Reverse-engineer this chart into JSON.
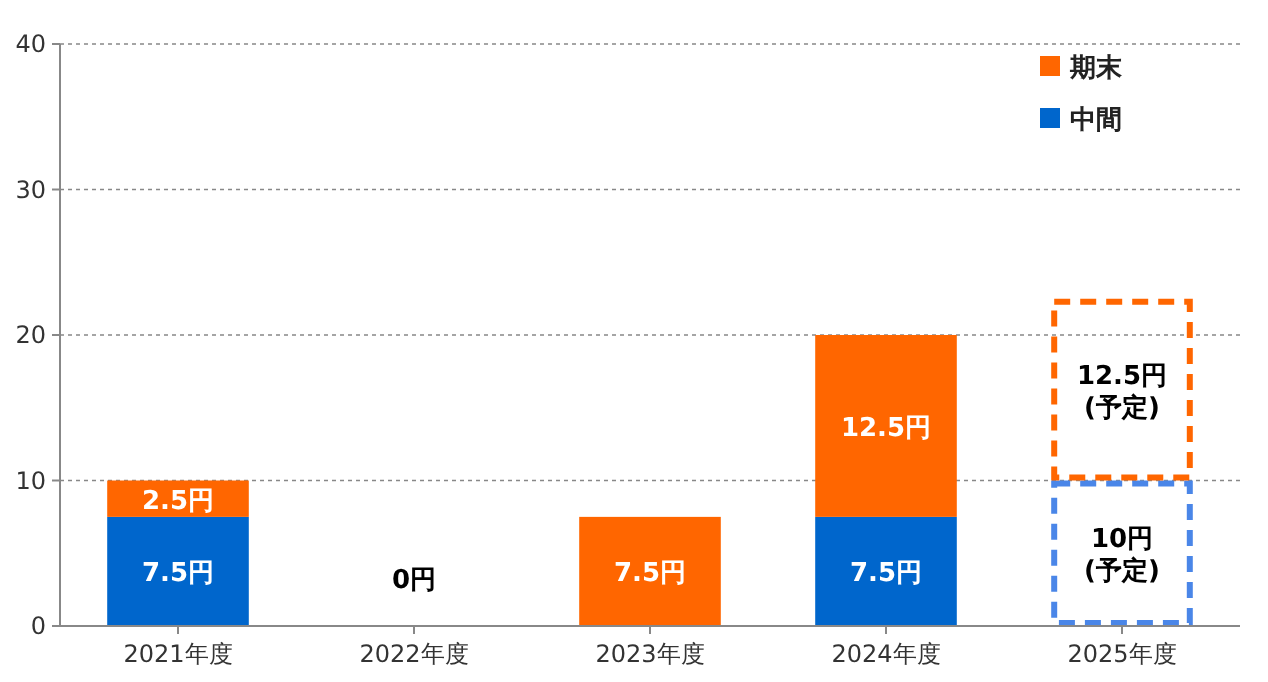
{
  "chart_data": {
    "type": "bar",
    "stacked": true,
    "categories": [
      "2021年度",
      "2022年度",
      "2023年度",
      "2024年度",
      "2025年度"
    ],
    "series": [
      {
        "name": "中間",
        "color": "#0066cc",
        "values": [
          7.5,
          0,
          null,
          7.5,
          null
        ],
        "value_labels": [
          "7.5円",
          "0円",
          null,
          "7.5円",
          null
        ]
      },
      {
        "name": "期末",
        "color": "#ff6600",
        "values": [
          2.5,
          null,
          7.5,
          12.5,
          null
        ],
        "value_labels": [
          "2.5円",
          null,
          "7.5円",
          "12.5円",
          null
        ]
      },
      {
        "color": "#4a86e8",
        "line_style": "dashed",
        "values": [
          null,
          null,
          null,
          null,
          10
        ],
        "value_labels": [
          null,
          null,
          null,
          null,
          "10円\n(予定)"
        ]
      },
      {
        "color": "#ff6600",
        "line_style": "dashed",
        "values": [
          null,
          null,
          null,
          null,
          12.5
        ],
        "value_labels": [
          null,
          null,
          null,
          null,
          "12.5円\n(予定)"
        ]
      }
    ],
    "ylim": [
      0,
      40
    ],
    "yticks": [
      0,
      10,
      20,
      30,
      40
    ],
    "grid": "y",
    "legend": "top right"
  }
}
